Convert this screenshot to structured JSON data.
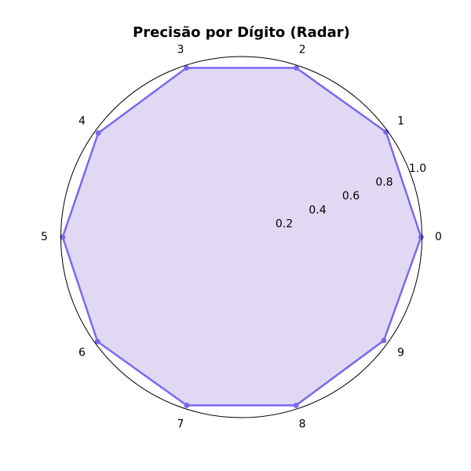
{
  "chart_data": {
    "type": "radar",
    "title": "Precisão por Dígito (Radar)",
    "categories": [
      "0",
      "1",
      "2",
      "3",
      "4",
      "5",
      "6",
      "7",
      "8",
      "9"
    ],
    "series": [
      {
        "values": [
          0.995,
          0.99,
          0.985,
          0.985,
          0.98,
          0.99,
          0.985,
          0.98,
          0.98,
          0.975
        ]
      }
    ],
    "rlim": [
      0,
      1.0
    ],
    "rticks": [
      0.2,
      0.4,
      0.6,
      0.8,
      1.0
    ],
    "rtick_labels": [
      "0.2",
      "0.4",
      "0.6",
      "0.8",
      "1.0"
    ],
    "grid": true,
    "colors": {
      "line": "#7b68ee",
      "fill": "#e1d9f3",
      "grid": "#b8b8b8",
      "outer_circle": "#000000"
    }
  }
}
